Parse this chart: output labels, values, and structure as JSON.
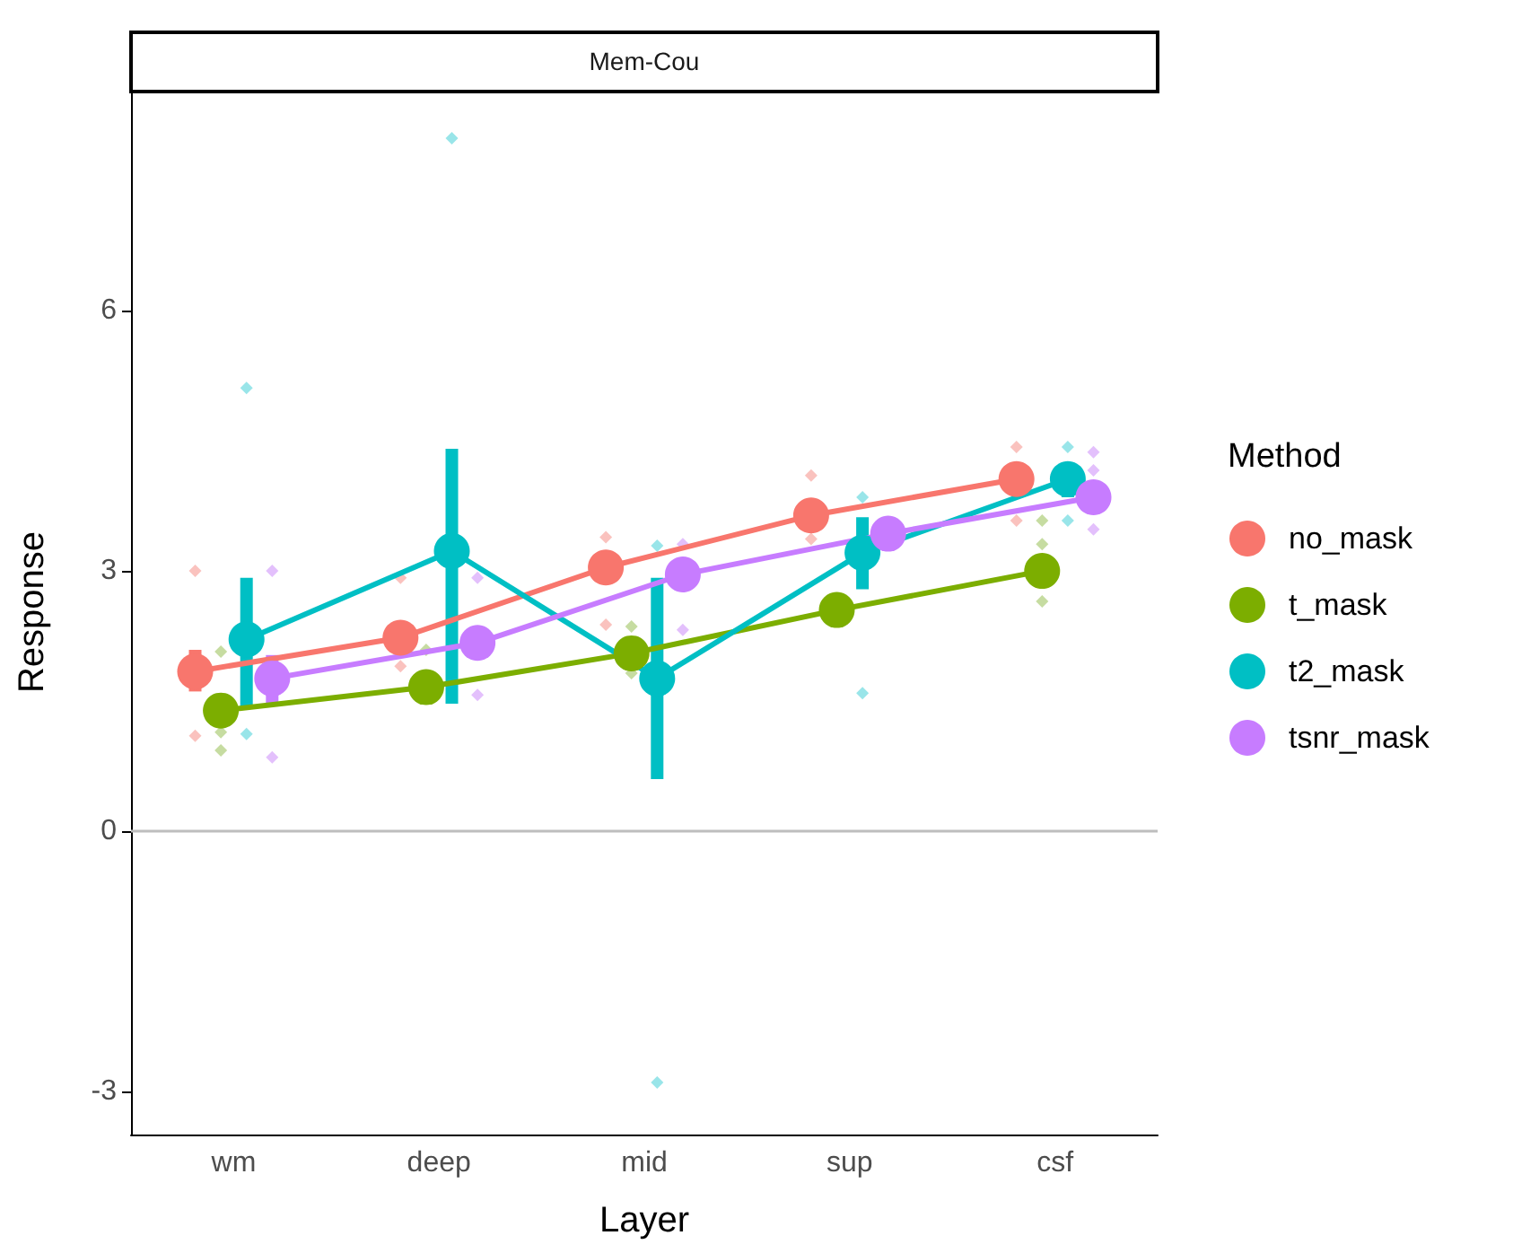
{
  "chart_data": {
    "type": "line",
    "title": "Mem-Cou",
    "xlabel": "Layer",
    "ylabel": "Response",
    "legend_title": "Method",
    "legend": "right",
    "marker": "circle",
    "categories": [
      "wm",
      "deep",
      "mid",
      "sup",
      "csf"
    ],
    "ylim": [
      -3.5,
      8.55
    ],
    "yticks": [
      -3,
      0,
      3,
      6
    ],
    "ref_lines": [
      {
        "axis": "y",
        "value": 0,
        "color": "#bebebe"
      }
    ],
    "series": [
      {
        "name": "no_mask",
        "color": "#f8766d",
        "values": [
          1.84,
          2.23,
          3.04,
          3.64,
          4.06
        ],
        "errors": [
          [
            1.61,
            2.09
          ],
          null,
          null,
          null,
          null
        ]
      },
      {
        "name": "t_mask",
        "color": "#7cae00",
        "values": [
          1.39,
          1.66,
          2.05,
          2.55,
          3.0
        ],
        "errors": [
          null,
          null,
          null,
          null,
          null
        ]
      },
      {
        "name": "t2_mask",
        "color": "#00bfc4",
        "values": [
          2.21,
          3.23,
          1.76,
          3.21,
          4.06
        ],
        "errors": [
          [
            1.41,
            2.92
          ],
          [
            1.47,
            4.41
          ],
          [
            0.6,
            2.92
          ],
          [
            2.79,
            3.62
          ],
          [
            3.85,
            4.24
          ]
        ]
      },
      {
        "name": "tsnr_mask",
        "color": "#c77cff",
        "values": [
          1.76,
          2.17,
          2.96,
          3.43,
          3.85
        ],
        "errors": [
          [
            1.45,
            2.03
          ],
          null,
          null,
          null,
          null
        ]
      },
      {
        "type": "scatter",
        "marker": "diamond",
        "color": "#f9b3ae",
        "x": [
          "wm",
          "wm",
          "deep",
          "deep",
          "mid",
          "mid",
          "sup",
          "sup",
          "csf",
          "csf"
        ],
        "values": [
          3.0,
          1.1,
          2.92,
          1.9,
          3.39,
          2.38,
          4.1,
          3.37,
          4.43,
          3.58
        ]
      },
      {
        "type": "scatter",
        "marker": "diamond",
        "color": "#b8d38a",
        "x": [
          "wm",
          "wm",
          "wm",
          "deep",
          "mid",
          "mid",
          "csf",
          "csf",
          "csf"
        ],
        "values": [
          2.07,
          1.14,
          0.93,
          2.09,
          2.36,
          1.82,
          3.58,
          3.31,
          2.65
        ]
      },
      {
        "type": "scatter",
        "marker": "diamond",
        "color": "#7fdfe3",
        "x": [
          "wm",
          "wm",
          "deep",
          "mid",
          "mid",
          "sup",
          "sup",
          "csf",
          "csf"
        ],
        "values": [
          5.11,
          1.12,
          7.99,
          3.29,
          -2.9,
          3.85,
          1.59,
          4.43,
          3.58
        ]
      },
      {
        "type": "scatter",
        "marker": "diamond",
        "color": "#dcb0fb",
        "x": [
          "wm",
          "wm",
          "deep",
          "deep",
          "mid",
          "mid",
          "csf",
          "csf",
          "csf"
        ],
        "values": [
          3.0,
          0.85,
          2.92,
          1.57,
          3.31,
          2.32,
          4.37,
          4.16,
          3.48
        ]
      }
    ]
  }
}
